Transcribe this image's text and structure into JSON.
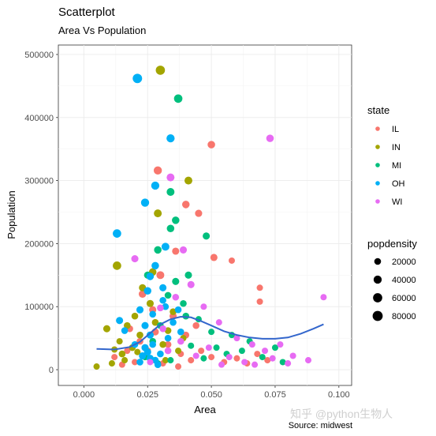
{
  "chart_data": {
    "type": "scatter",
    "title": "Scatterplot",
    "subtitle": "Area Vs Population",
    "xlabel": "Area",
    "ylabel": "Population",
    "caption": "Source: midwest",
    "xlim": [
      -0.01,
      0.105
    ],
    "ylim": [
      -25000,
      515000
    ],
    "xticks": [
      0.0,
      0.025,
      0.05,
      0.075,
      0.1
    ],
    "xtick_labels": [
      "0.000",
      "0.025",
      "0.050",
      "0.075",
      "0.100"
    ],
    "yticks": [
      0,
      100000,
      200000,
      300000,
      400000,
      500000
    ],
    "ytick_labels": [
      "0",
      "100000",
      "200000",
      "300000",
      "400000",
      "500000"
    ],
    "grid": true,
    "legend_placement": "right",
    "color_legend": {
      "title": "state",
      "entries": [
        {
          "label": "IL",
          "color": "#F8766D"
        },
        {
          "label": "IN",
          "color": "#A3A500"
        },
        {
          "label": "MI",
          "color": "#00BF7D"
        },
        {
          "label": "OH",
          "color": "#00B0F6"
        },
        {
          "label": "WI",
          "color": "#E76BF3"
        }
      ]
    },
    "size_legend": {
      "title": "popdensity",
      "entries": [
        {
          "label": "20000",
          "value": 20000
        },
        {
          "label": "40000",
          "value": 40000
        },
        {
          "label": "60000",
          "value": 60000
        },
        {
          "label": "80000",
          "value": 80000
        }
      ]
    },
    "series": [
      {
        "name": "IL",
        "points": [
          {
            "x": 0.029,
            "y": 316000,
            "d": 40000
          },
          {
            "x": 0.05,
            "y": 357000,
            "d": 30000
          },
          {
            "x": 0.04,
            "y": 262000,
            "d": 30000
          },
          {
            "x": 0.045,
            "y": 248000,
            "d": 25000
          },
          {
            "x": 0.051,
            "y": 178000,
            "d": 25000
          },
          {
            "x": 0.058,
            "y": 173000,
            "d": 15000
          },
          {
            "x": 0.069,
            "y": 130000,
            "d": 15000
          },
          {
            "x": 0.069,
            "y": 108000,
            "d": 15000
          },
          {
            "x": 0.03,
            "y": 150000,
            "d": 35000
          },
          {
            "x": 0.036,
            "y": 188000,
            "d": 25000
          },
          {
            "x": 0.023,
            "y": 120000,
            "d": 30000
          },
          {
            "x": 0.018,
            "y": 65000,
            "d": 20000
          },
          {
            "x": 0.012,
            "y": 20000,
            "d": 15000
          },
          {
            "x": 0.015,
            "y": 8000,
            "d": 15000
          },
          {
            "x": 0.02,
            "y": 12000,
            "d": 15000
          },
          {
            "x": 0.025,
            "y": 30000,
            "d": 20000
          },
          {
            "x": 0.033,
            "y": 40000,
            "d": 20000
          },
          {
            "x": 0.038,
            "y": 25000,
            "d": 15000
          },
          {
            "x": 0.042,
            "y": 15000,
            "d": 15000
          },
          {
            "x": 0.046,
            "y": 30000,
            "d": 15000
          },
          {
            "x": 0.05,
            "y": 20000,
            "d": 15000
          },
          {
            "x": 0.055,
            "y": 12000,
            "d": 15000
          },
          {
            "x": 0.06,
            "y": 18000,
            "d": 15000
          },
          {
            "x": 0.064,
            "y": 10000,
            "d": 15000
          },
          {
            "x": 0.068,
            "y": 25000,
            "d": 15000
          },
          {
            "x": 0.072,
            "y": 15000,
            "d": 15000
          },
          {
            "x": 0.028,
            "y": 60000,
            "d": 25000
          },
          {
            "x": 0.035,
            "y": 85000,
            "d": 25000
          },
          {
            "x": 0.04,
            "y": 55000,
            "d": 20000
          },
          {
            "x": 0.044,
            "y": 70000,
            "d": 20000
          },
          {
            "x": 0.022,
            "y": 45000,
            "d": 20000
          },
          {
            "x": 0.017,
            "y": 30000,
            "d": 15000
          },
          {
            "x": 0.031,
            "y": 10000,
            "d": 15000
          },
          {
            "x": 0.037,
            "y": 5000,
            "d": 15000
          },
          {
            "x": 0.027,
            "y": 95000,
            "d": 25000
          }
        ]
      },
      {
        "name": "IN",
        "points": [
          {
            "x": 0.03,
            "y": 475000,
            "d": 60000
          },
          {
            "x": 0.041,
            "y": 300000,
            "d": 35000
          },
          {
            "x": 0.029,
            "y": 248000,
            "d": 35000
          },
          {
            "x": 0.013,
            "y": 165000,
            "d": 45000
          },
          {
            "x": 0.027,
            "y": 155000,
            "d": 30000
          },
          {
            "x": 0.009,
            "y": 65000,
            "d": 25000
          },
          {
            "x": 0.005,
            "y": 5000,
            "d": 15000
          },
          {
            "x": 0.011,
            "y": 10000,
            "d": 15000
          },
          {
            "x": 0.015,
            "y": 25000,
            "d": 20000
          },
          {
            "x": 0.019,
            "y": 35000,
            "d": 20000
          },
          {
            "x": 0.017,
            "y": 70000,
            "d": 20000
          },
          {
            "x": 0.02,
            "y": 85000,
            "d": 20000
          },
          {
            "x": 0.014,
            "y": 45000,
            "d": 15000
          },
          {
            "x": 0.022,
            "y": 55000,
            "d": 20000
          },
          {
            "x": 0.024,
            "y": 20000,
            "d": 15000
          },
          {
            "x": 0.026,
            "y": 105000,
            "d": 25000
          },
          {
            "x": 0.028,
            "y": 75000,
            "d": 20000
          },
          {
            "x": 0.031,
            "y": 40000,
            "d": 20000
          },
          {
            "x": 0.033,
            "y": 62000,
            "d": 20000
          },
          {
            "x": 0.035,
            "y": 92000,
            "d": 20000
          },
          {
            "x": 0.037,
            "y": 30000,
            "d": 15000
          },
          {
            "x": 0.039,
            "y": 50000,
            "d": 15000
          },
          {
            "x": 0.021,
            "y": 28000,
            "d": 15000
          },
          {
            "x": 0.016,
            "y": 15000,
            "d": 15000
          },
          {
            "x": 0.012,
            "y": 32000,
            "d": 15000
          },
          {
            "x": 0.023,
            "y": 130000,
            "d": 25000
          },
          {
            "x": 0.032,
            "y": 15000,
            "d": 15000
          }
        ]
      },
      {
        "name": "MI",
        "points": [
          {
            "x": 0.037,
            "y": 430000,
            "d": 45000
          },
          {
            "x": 0.034,
            "y": 282000,
            "d": 35000
          },
          {
            "x": 0.036,
            "y": 237000,
            "d": 30000
          },
          {
            "x": 0.034,
            "y": 224000,
            "d": 30000
          },
          {
            "x": 0.048,
            "y": 212000,
            "d": 25000
          },
          {
            "x": 0.029,
            "y": 190000,
            "d": 30000
          },
          {
            "x": 0.041,
            "y": 150000,
            "d": 25000
          },
          {
            "x": 0.036,
            "y": 140000,
            "d": 25000
          },
          {
            "x": 0.025,
            "y": 150000,
            "d": 25000
          },
          {
            "x": 0.033,
            "y": 118000,
            "d": 20000
          },
          {
            "x": 0.039,
            "y": 105000,
            "d": 20000
          },
          {
            "x": 0.045,
            "y": 80000,
            "d": 15000
          },
          {
            "x": 0.05,
            "y": 60000,
            "d": 15000
          },
          {
            "x": 0.052,
            "y": 35000,
            "d": 15000
          },
          {
            "x": 0.056,
            "y": 25000,
            "d": 15000
          },
          {
            "x": 0.062,
            "y": 30000,
            "d": 15000
          },
          {
            "x": 0.065,
            "y": 45000,
            "d": 15000
          },
          {
            "x": 0.07,
            "y": 20000,
            "d": 15000
          },
          {
            "x": 0.075,
            "y": 35000,
            "d": 15000
          },
          {
            "x": 0.078,
            "y": 12000,
            "d": 15000
          },
          {
            "x": 0.03,
            "y": 70000,
            "d": 20000
          },
          {
            "x": 0.027,
            "y": 45000,
            "d": 20000
          },
          {
            "x": 0.024,
            "y": 20000,
            "d": 15000
          },
          {
            "x": 0.034,
            "y": 15000,
            "d": 15000
          },
          {
            "x": 0.042,
            "y": 38000,
            "d": 15000
          },
          {
            "x": 0.047,
            "y": 18000,
            "d": 15000
          },
          {
            "x": 0.058,
            "y": 55000,
            "d": 15000
          },
          {
            "x": 0.029,
            "y": 10000,
            "d": 15000
          },
          {
            "x": 0.04,
            "y": 85000,
            "d": 20000
          }
        ]
      },
      {
        "name": "OH",
        "points": [
          {
            "x": 0.021,
            "y": 462000,
            "d": 65000
          },
          {
            "x": 0.034,
            "y": 367000,
            "d": 40000
          },
          {
            "x": 0.028,
            "y": 292000,
            "d": 40000
          },
          {
            "x": 0.024,
            "y": 265000,
            "d": 40000
          },
          {
            "x": 0.013,
            "y": 216000,
            "d": 45000
          },
          {
            "x": 0.032,
            "y": 195000,
            "d": 35000
          },
          {
            "x": 0.028,
            "y": 165000,
            "d": 30000
          },
          {
            "x": 0.026,
            "y": 148000,
            "d": 30000
          },
          {
            "x": 0.025,
            "y": 125000,
            "d": 30000
          },
          {
            "x": 0.031,
            "y": 130000,
            "d": 25000
          },
          {
            "x": 0.022,
            "y": 95000,
            "d": 25000
          },
          {
            "x": 0.014,
            "y": 78000,
            "d": 25000
          },
          {
            "x": 0.016,
            "y": 62000,
            "d": 20000
          },
          {
            "x": 0.024,
            "y": 70000,
            "d": 25000
          },
          {
            "x": 0.026,
            "y": 55000,
            "d": 25000
          },
          {
            "x": 0.027,
            "y": 40000,
            "d": 20000
          },
          {
            "x": 0.024,
            "y": 35000,
            "d": 25000
          },
          {
            "x": 0.025,
            "y": 28000,
            "d": 25000
          },
          {
            "x": 0.023,
            "y": 22000,
            "d": 25000
          },
          {
            "x": 0.026,
            "y": 18000,
            "d": 25000
          },
          {
            "x": 0.028,
            "y": 15000,
            "d": 20000
          },
          {
            "x": 0.03,
            "y": 25000,
            "d": 20000
          },
          {
            "x": 0.022,
            "y": 12000,
            "d": 20000
          },
          {
            "x": 0.029,
            "y": 8000,
            "d": 20000
          },
          {
            "x": 0.033,
            "y": 50000,
            "d": 20000
          },
          {
            "x": 0.035,
            "y": 75000,
            "d": 20000
          },
          {
            "x": 0.037,
            "y": 95000,
            "d": 20000
          },
          {
            "x": 0.038,
            "y": 60000,
            "d": 20000
          },
          {
            "x": 0.032,
            "y": 100000,
            "d": 20000
          },
          {
            "x": 0.02,
            "y": 40000,
            "d": 20000
          },
          {
            "x": 0.027,
            "y": 88000,
            "d": 20000
          },
          {
            "x": 0.031,
            "y": 110000,
            "d": 20000
          }
        ]
      },
      {
        "name": "WI",
        "points": [
          {
            "x": 0.073,
            "y": 367000,
            "d": 30000
          },
          {
            "x": 0.034,
            "y": 305000,
            "d": 35000
          },
          {
            "x": 0.02,
            "y": 176000,
            "d": 25000
          },
          {
            "x": 0.094,
            "y": 115000,
            "d": 15000
          },
          {
            "x": 0.039,
            "y": 190000,
            "d": 25000
          },
          {
            "x": 0.042,
            "y": 135000,
            "d": 25000
          },
          {
            "x": 0.036,
            "y": 115000,
            "d": 20000
          },
          {
            "x": 0.03,
            "y": 98000,
            "d": 20000
          },
          {
            "x": 0.047,
            "y": 100000,
            "d": 15000
          },
          {
            "x": 0.053,
            "y": 75000,
            "d": 15000
          },
          {
            "x": 0.06,
            "y": 50000,
            "d": 15000
          },
          {
            "x": 0.066,
            "y": 40000,
            "d": 15000
          },
          {
            "x": 0.071,
            "y": 30000,
            "d": 15000
          },
          {
            "x": 0.077,
            "y": 40000,
            "d": 15000
          },
          {
            "x": 0.082,
            "y": 22000,
            "d": 15000
          },
          {
            "x": 0.088,
            "y": 15000,
            "d": 15000
          },
          {
            "x": 0.08,
            "y": 10000,
            "d": 15000
          },
          {
            "x": 0.074,
            "y": 18000,
            "d": 15000
          },
          {
            "x": 0.063,
            "y": 12000,
            "d": 15000
          },
          {
            "x": 0.057,
            "y": 20000,
            "d": 15000
          },
          {
            "x": 0.049,
            "y": 35000,
            "d": 15000
          },
          {
            "x": 0.044,
            "y": 22000,
            "d": 15000
          },
          {
            "x": 0.038,
            "y": 45000,
            "d": 20000
          },
          {
            "x": 0.033,
            "y": 30000,
            "d": 20000
          },
          {
            "x": 0.026,
            "y": 12000,
            "d": 15000
          },
          {
            "x": 0.031,
            "y": 65000,
            "d": 20000
          },
          {
            "x": 0.054,
            "y": 8000,
            "d": 15000
          },
          {
            "x": 0.067,
            "y": 8000,
            "d": 15000
          }
        ]
      }
    ],
    "smooth_line": {
      "color": "#3366CC",
      "x": [
        0.005,
        0.012,
        0.018,
        0.022,
        0.026,
        0.03,
        0.034,
        0.038,
        0.042,
        0.046,
        0.05,
        0.055,
        0.06,
        0.065,
        0.07,
        0.075,
        0.08,
        0.085,
        0.09,
        0.094
      ],
      "y": [
        33000,
        32000,
        36000,
        44000,
        58000,
        72000,
        80000,
        84000,
        83000,
        77000,
        70000,
        61000,
        55000,
        51000,
        49000,
        49000,
        51000,
        57000,
        65000,
        72000
      ]
    }
  },
  "watermark": "知乎 @python生物人"
}
